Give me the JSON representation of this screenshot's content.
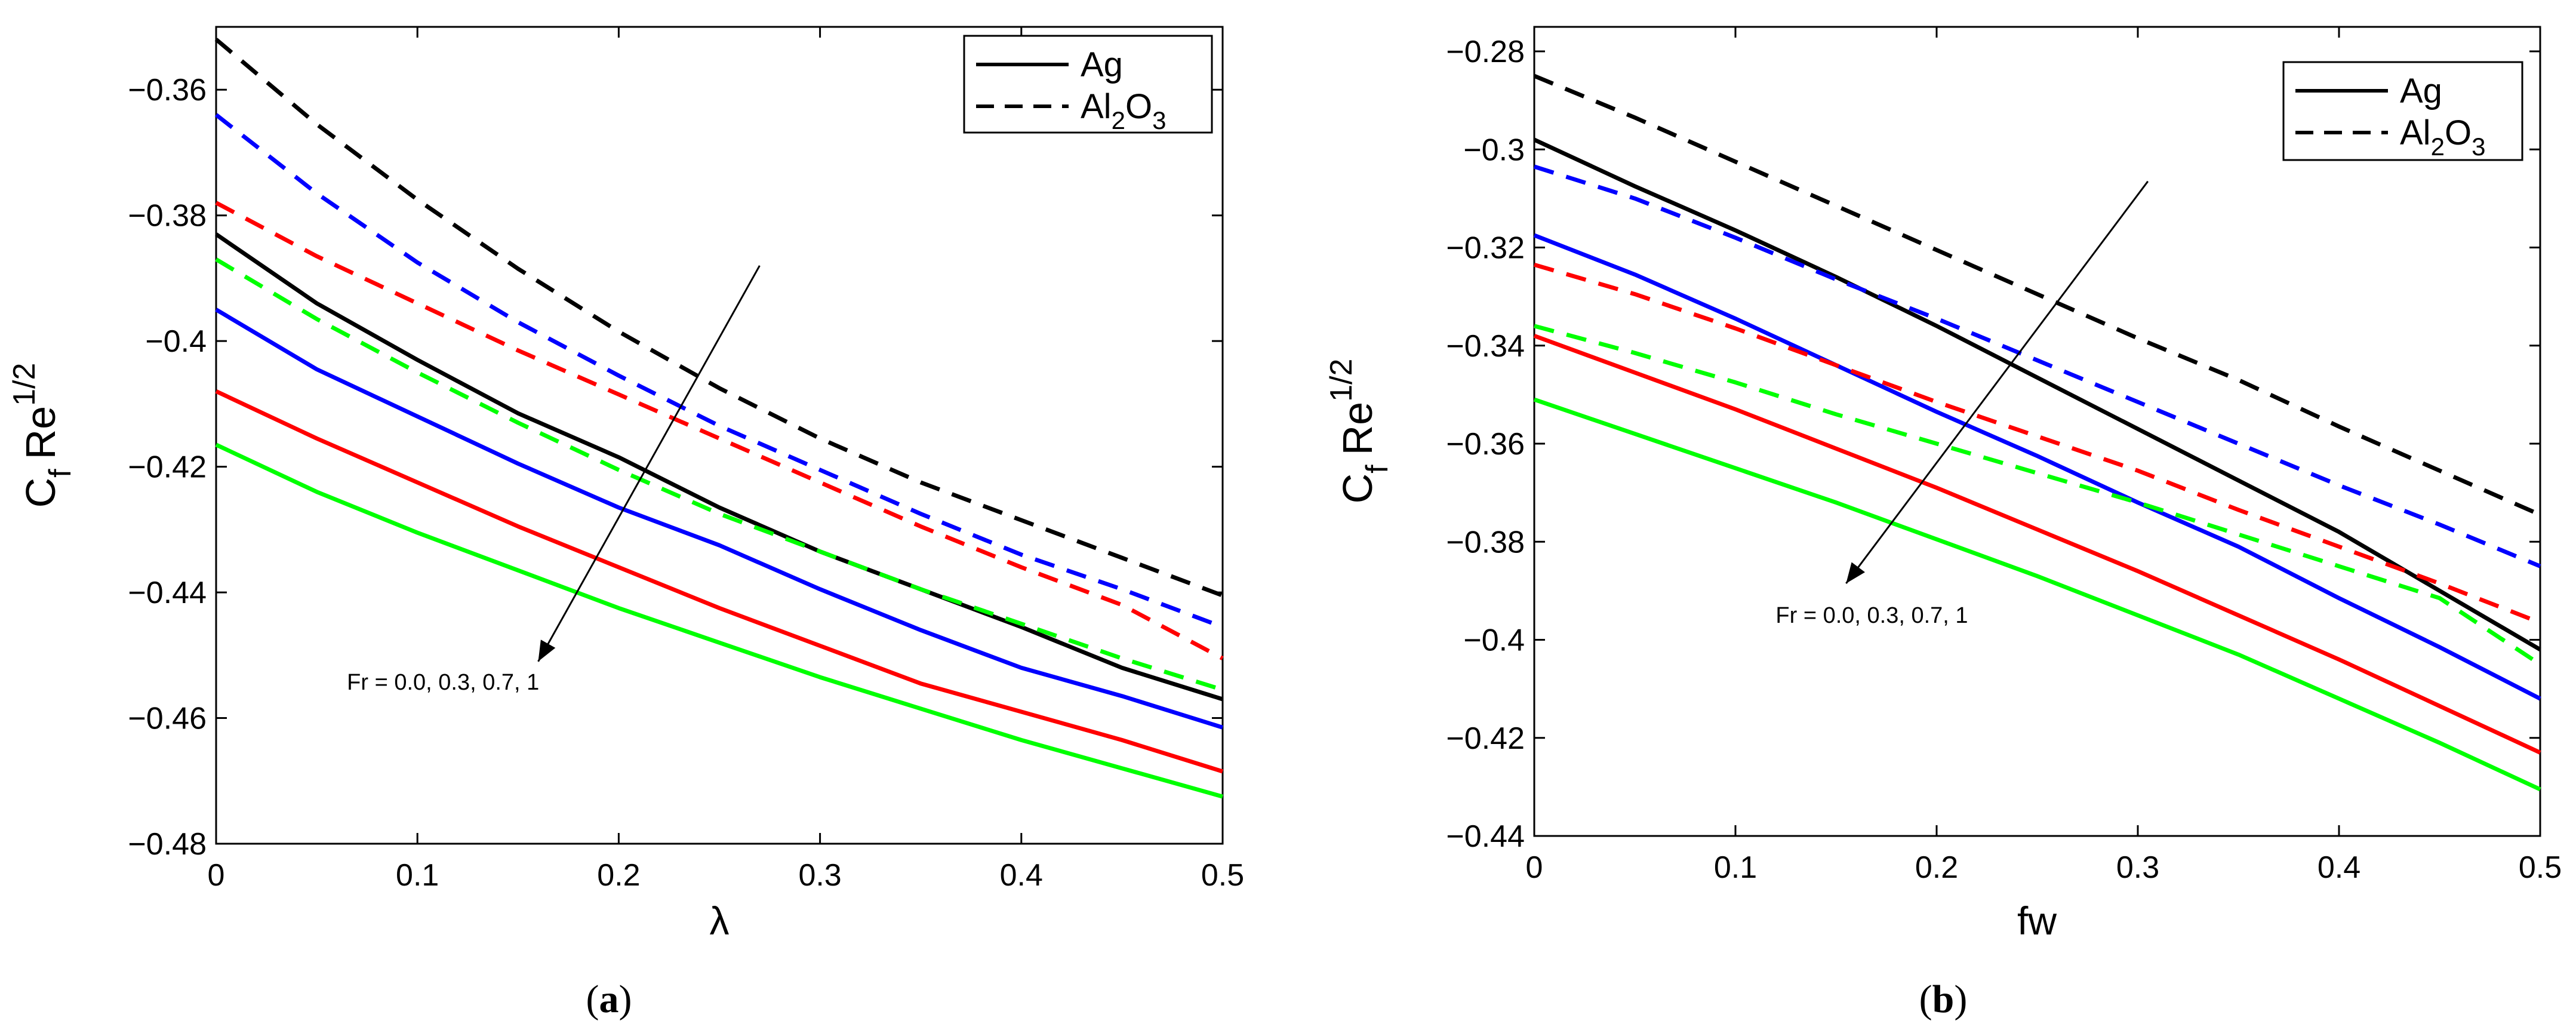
{
  "chart_data": [
    {
      "type": "line",
      "panel": "(a)",
      "panel_letter": "a",
      "xlabel": "λ",
      "ylabel": "C",
      "ylabel_sub": "f",
      "ylabel_rest": "Re",
      "ylabel_sup": "1/2",
      "xlim": [
        0,
        0.5
      ],
      "ylim": [
        -0.48,
        -0.35
      ],
      "xticks": [
        0,
        0.1,
        0.2,
        0.3,
        0.4,
        0.5
      ],
      "xtick_labels": [
        "0",
        "0.1",
        "0.2",
        "0.3",
        "0.4",
        "0.5"
      ],
      "yticks": [
        -0.48,
        -0.46,
        -0.44,
        -0.42,
        -0.4,
        -0.38,
        -0.36
      ],
      "ytick_labels": [
        "−0.48",
        "−0.46",
        "−0.44",
        "−0.42",
        "−0.4",
        "−0.38",
        "−0.36"
      ],
      "grid": false,
      "legend_position": "top-right",
      "legend": [
        {
          "label": "Ag",
          "style": "solid"
        },
        {
          "label_main": "Al",
          "label_sub": "2",
          "label_end": "O",
          "label_sub2": "3",
          "style": "dashed"
        }
      ],
      "annotation": {
        "text": "Fr = 0.0, 0.3, 0.7, 1",
        "arrow_from": [
          0.27,
          -0.388
        ],
        "arrow_to": [
          0.16,
          -0.451
        ],
        "text_at": [
          0.065,
          -0.4555
        ]
      },
      "x": [
        0,
        0.05,
        0.1,
        0.15,
        0.2,
        0.25,
        0.3,
        0.35,
        0.4,
        0.45,
        0.5
      ],
      "series": [
        {
          "name": "Ag, Fr = 0.0",
          "color": "#000000",
          "dash": false,
          "values": [
            -0.383,
            -0.394,
            -0.403,
            -0.4115,
            -0.4185,
            -0.4265,
            -0.4335,
            -0.4395,
            -0.4455,
            -0.452,
            -0.457
          ]
        },
        {
          "name": "Ag, Fr = 0.3",
          "color": "#0000ff",
          "dash": false,
          "values": [
            -0.395,
            -0.4045,
            -0.412,
            -0.4195,
            -0.4265,
            -0.4325,
            -0.4395,
            -0.446,
            -0.452,
            -0.4565,
            -0.4615
          ]
        },
        {
          "name": "Ag, Fr = 0.7",
          "color": "#ff0000",
          "dash": false,
          "values": [
            -0.408,
            -0.4155,
            -0.4225,
            -0.4295,
            -0.436,
            -0.4425,
            -0.4485,
            -0.4545,
            -0.459,
            -0.4635,
            -0.4685
          ]
        },
        {
          "name": "Ag, Fr = 1",
          "color": "#00ff00",
          "dash": false,
          "values": [
            -0.4165,
            -0.424,
            -0.4305,
            -0.4365,
            -0.4425,
            -0.448,
            -0.4535,
            -0.4585,
            -0.4635,
            -0.468,
            -0.4725
          ]
        },
        {
          "name": "Al2O3, Fr = 0.0",
          "color": "#000000",
          "dash": true,
          "values": [
            -0.352,
            -0.3655,
            -0.3775,
            -0.3885,
            -0.3985,
            -0.4075,
            -0.4155,
            -0.4225,
            -0.4285,
            -0.4345,
            -0.4405
          ]
        },
        {
          "name": "Al2O3, Fr = 0.3",
          "color": "#0000ff",
          "dash": true,
          "values": [
            -0.364,
            -0.3765,
            -0.3875,
            -0.397,
            -0.4055,
            -0.4135,
            -0.4205,
            -0.4275,
            -0.434,
            -0.4395,
            -0.4455
          ]
        },
        {
          "name": "Al2O3, Fr = 0.7",
          "color": "#ff0000",
          "dash": true,
          "values": [
            -0.378,
            -0.3865,
            -0.394,
            -0.4015,
            -0.4085,
            -0.4155,
            -0.4225,
            -0.4295,
            -0.436,
            -0.442,
            -0.4505
          ]
        },
        {
          "name": "Al2O3, Fr = 1",
          "color": "#00ff00",
          "dash": true,
          "values": [
            -0.387,
            -0.3965,
            -0.405,
            -0.413,
            -0.4205,
            -0.4275,
            -0.4335,
            -0.4395,
            -0.445,
            -0.4505,
            -0.4555
          ]
        }
      ]
    },
    {
      "type": "line",
      "panel": "(b)",
      "panel_letter": "b",
      "xlabel": "fw",
      "ylabel": "C",
      "ylabel_sub": "f",
      "ylabel_rest": "Re",
      "ylabel_sup": "1/2",
      "xlim": [
        0,
        0.5
      ],
      "ylim": [
        -0.44,
        -0.275
      ],
      "xticks": [
        0,
        0.1,
        0.2,
        0.3,
        0.4,
        0.5
      ],
      "xtick_labels": [
        "0",
        "0.1",
        "0.2",
        "0.3",
        "0.4",
        "0.5"
      ],
      "yticks": [
        -0.44,
        -0.42,
        -0.4,
        -0.38,
        -0.36,
        -0.34,
        -0.32,
        -0.3,
        -0.28
      ],
      "ytick_labels": [
        "−0.44",
        "−0.42",
        "−0.4",
        "−0.38",
        "−0.36",
        "−0.34",
        "−0.32",
        "−0.3",
        "−0.28"
      ],
      "grid": false,
      "legend_position": "top-right",
      "legend": [
        {
          "label": "Ag",
          "style": "solid"
        },
        {
          "label_main": "Al",
          "label_sub": "2",
          "label_end": "O",
          "label_sub2": "3",
          "style": "dashed"
        }
      ],
      "annotation": {
        "text": "Fr = 0.0, 0.3, 0.7, 1",
        "arrow_from": [
          0.305,
          -0.3065
        ],
        "arrow_to": [
          0.155,
          -0.3885
        ],
        "text_at": [
          0.12,
          -0.3965
        ]
      },
      "x": [
        0,
        0.05,
        0.1,
        0.15,
        0.2,
        0.25,
        0.3,
        0.35,
        0.4,
        0.45,
        0.5
      ],
      "series": [
        {
          "name": "Ag, Fr = 0.0",
          "color": "#000000",
          "dash": false,
          "values": [
            -0.298,
            -0.3075,
            -0.3165,
            -0.326,
            -0.336,
            -0.3465,
            -0.357,
            -0.3675,
            -0.378,
            -0.39,
            -0.402
          ]
        },
        {
          "name": "Ag, Fr = 0.3",
          "color": "#0000ff",
          "dash": false,
          "values": [
            -0.3175,
            -0.3255,
            -0.3345,
            -0.344,
            -0.3535,
            -0.3625,
            -0.372,
            -0.381,
            -0.3915,
            -0.4015,
            -0.412
          ]
        },
        {
          "name": "Ag, Fr = 0.7",
          "color": "#ff0000",
          "dash": false,
          "values": [
            -0.338,
            -0.3455,
            -0.353,
            -0.361,
            -0.369,
            -0.3775,
            -0.386,
            -0.395,
            -0.404,
            -0.4135,
            -0.423
          ]
        },
        {
          "name": "Ag, Fr = 1",
          "color": "#00ff00",
          "dash": false,
          "values": [
            -0.351,
            -0.358,
            -0.365,
            -0.372,
            -0.3795,
            -0.387,
            -0.395,
            -0.403,
            -0.412,
            -0.421,
            -0.4305
          ]
        },
        {
          "name": "Al2O3, Fr = 0.0",
          "color": "#000000",
          "dash": true,
          "values": [
            -0.285,
            -0.2935,
            -0.3025,
            -0.3115,
            -0.3205,
            -0.3295,
            -0.3385,
            -0.347,
            -0.3565,
            -0.3655,
            -0.3745
          ]
        },
        {
          "name": "Al2O3, Fr = 0.3",
          "color": "#0000ff",
          "dash": true,
          "values": [
            -0.3035,
            -0.31,
            -0.318,
            -0.3265,
            -0.3345,
            -0.343,
            -0.3515,
            -0.36,
            -0.3685,
            -0.3765,
            -0.385
          ]
        },
        {
          "name": "Al2O3, Fr = 0.7",
          "color": "#ff0000",
          "dash": true,
          "values": [
            -0.3235,
            -0.3295,
            -0.3365,
            -0.344,
            -0.3515,
            -0.3585,
            -0.3655,
            -0.3735,
            -0.381,
            -0.3885,
            -0.3965
          ]
        },
        {
          "name": "Al2O3, Fr = 1",
          "color": "#00ff00",
          "dash": true,
          "values": [
            -0.336,
            -0.3415,
            -0.3475,
            -0.354,
            -0.36,
            -0.366,
            -0.372,
            -0.3785,
            -0.385,
            -0.3915,
            -0.405
          ]
        }
      ]
    }
  ]
}
